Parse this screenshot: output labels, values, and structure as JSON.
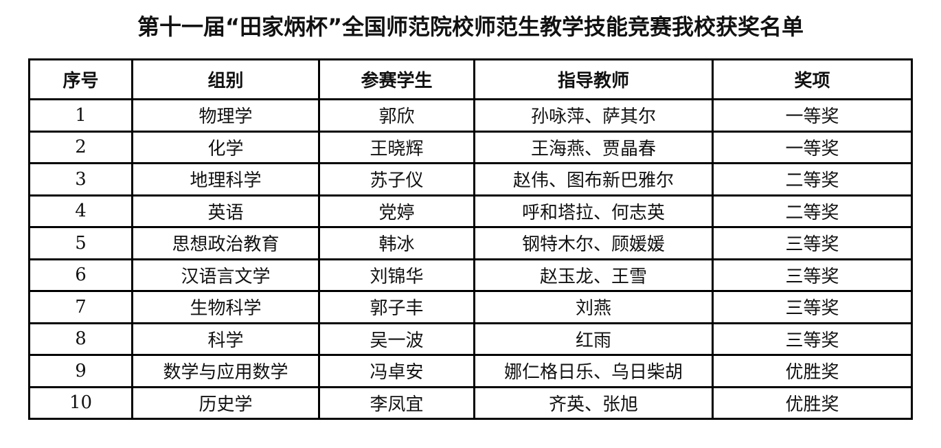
{
  "title": "第十一届“田家炳杯”全国师范院校师范生教学技能竞赛我校获奖名单",
  "table": {
    "headers": [
      "序号",
      "组别",
      "参赛学生",
      "指导教师",
      "奖项"
    ],
    "rows": [
      [
        "1",
        "物理学",
        "郭欣",
        "孙咏萍、萨其尔",
        "一等奖"
      ],
      [
        "2",
        "化学",
        "王晓辉",
        "王海燕、贾晶春",
        "一等奖"
      ],
      [
        "3",
        "地理科学",
        "苏子仪",
        "赵伟、图布新巴雅尔",
        "二等奖"
      ],
      [
        "4",
        "英语",
        "党婷",
        "呼和塔拉、何志英",
        "二等奖"
      ],
      [
        "5",
        "思想政治教育",
        "韩冰",
        "钢特木尔、顾媛媛",
        "三等奖"
      ],
      [
        "6",
        "汉语言文学",
        "刘锦华",
        "赵玉龙、王雪",
        "三等奖"
      ],
      [
        "7",
        "生物科学",
        "郭子丰",
        "刘燕",
        "三等奖"
      ],
      [
        "8",
        "科学",
        "吴一波",
        "红雨",
        "三等奖"
      ],
      [
        "9",
        "数学与应用数学",
        "冯卓安",
        "娜仁格日乐、乌日柴胡",
        "优胜奖"
      ],
      [
        "10",
        "历史学",
        "李凤宜",
        "齐英、张旭",
        "优胜奖"
      ]
    ]
  }
}
